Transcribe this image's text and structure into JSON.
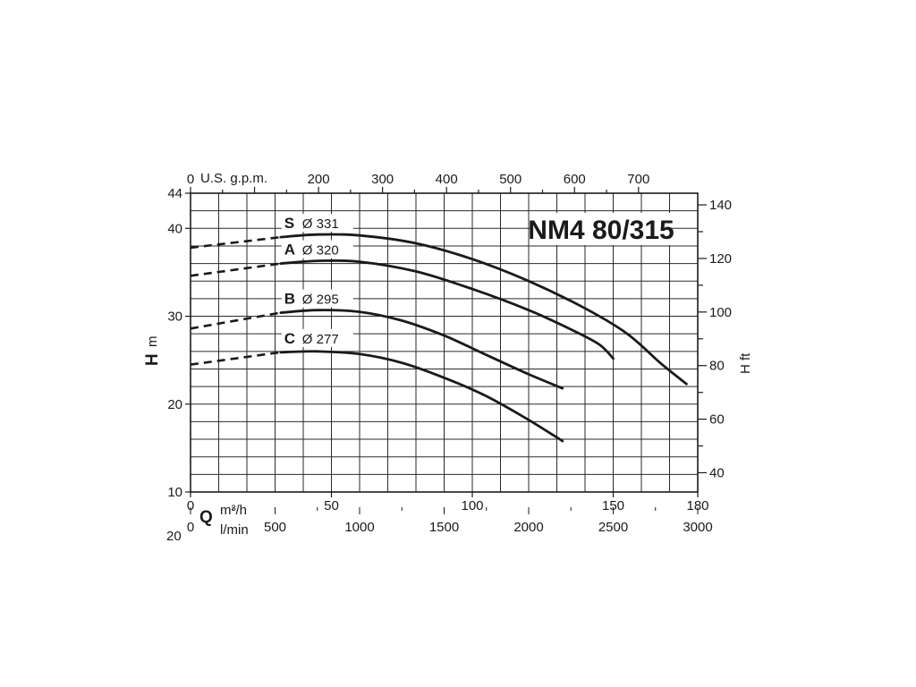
{
  "chart_data": {
    "type": "line",
    "title": "NM4 80/315",
    "x_primary": {
      "name": "Q",
      "unit": "m³/h",
      "range": [
        0,
        180
      ],
      "ticks": [
        0,
        50,
        100,
        150,
        180
      ]
    },
    "x_secondary": {
      "unit": "l/min",
      "ticks": [
        0,
        500,
        1000,
        1500,
        2000,
        2500,
        3000
      ]
    },
    "x_top": {
      "unit": "U.S. g.p.m.",
      "ticks": [
        0,
        200,
        300,
        400,
        500,
        600,
        700
      ]
    },
    "y_primary": {
      "name": "H",
      "unit": "m",
      "range": [
        10,
        44
      ],
      "ticks": [
        10,
        20,
        30,
        40,
        44
      ]
    },
    "y_secondary": {
      "label": "H ft",
      "ticks": [
        40,
        60,
        80,
        100,
        120,
        140
      ]
    },
    "grid": true,
    "cut_label": "20",
    "series": [
      {
        "letter": "S",
        "diameter": "Ø 331",
        "dashed_points": [
          [
            0,
            37.8
          ],
          [
            32,
            39.0
          ]
        ],
        "points": [
          [
            32,
            39.0
          ],
          [
            45,
            39.3
          ],
          [
            60,
            39.2
          ],
          [
            80,
            38.3
          ],
          [
            100,
            36.5
          ],
          [
            120,
            34.0
          ],
          [
            140,
            30.9
          ],
          [
            155,
            28.0
          ],
          [
            167,
            24.6
          ],
          [
            176,
            22.3
          ]
        ]
      },
      {
        "letter": "A",
        "diameter": "Ø 320",
        "dashed_points": [
          [
            0,
            34.6
          ],
          [
            32,
            36.0
          ]
        ],
        "points": [
          [
            32,
            36.0
          ],
          [
            45,
            36.3
          ],
          [
            60,
            36.2
          ],
          [
            80,
            35.1
          ],
          [
            100,
            33.1
          ],
          [
            120,
            30.7
          ],
          [
            135,
            28.5
          ],
          [
            145,
            26.8
          ],
          [
            150,
            25.2
          ]
        ]
      },
      {
        "letter": "B",
        "diameter": "Ø 295",
        "dashed_points": [
          [
            0,
            28.6
          ],
          [
            32,
            30.4
          ]
        ],
        "points": [
          [
            32,
            30.4
          ],
          [
            45,
            30.7
          ],
          [
            60,
            30.5
          ],
          [
            75,
            29.5
          ],
          [
            90,
            27.8
          ],
          [
            105,
            25.6
          ],
          [
            120,
            23.4
          ],
          [
            132,
            21.8
          ]
        ]
      },
      {
        "letter": "C",
        "diameter": "Ø 277",
        "dashed_points": [
          [
            0,
            24.5
          ],
          [
            32,
            25.9
          ]
        ],
        "points": [
          [
            32,
            25.9
          ],
          [
            45,
            26.0
          ],
          [
            60,
            25.7
          ],
          [
            75,
            24.7
          ],
          [
            90,
            23.0
          ],
          [
            105,
            20.9
          ],
          [
            120,
            18.2
          ],
          [
            132,
            15.8
          ]
        ]
      }
    ]
  }
}
